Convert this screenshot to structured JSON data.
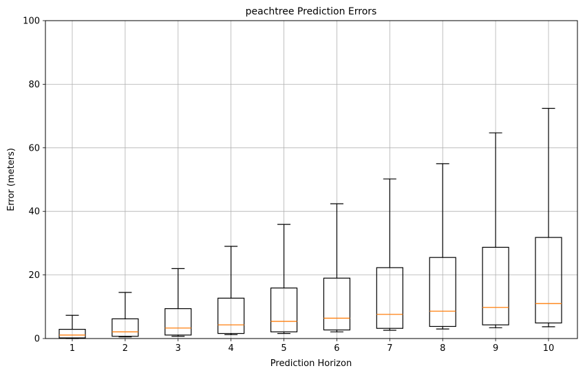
{
  "chart_data": {
    "type": "boxplot",
    "title": "peachtree Prediction Errors",
    "xlabel": "Prediction Horizon",
    "ylabel": "Error (meters)",
    "ylim": [
      0,
      100
    ],
    "yticks": [
      0,
      20,
      40,
      60,
      80,
      100
    ],
    "categories": [
      "1",
      "2",
      "3",
      "4",
      "5",
      "6",
      "7",
      "8",
      "9",
      "10"
    ],
    "boxes": [
      {
        "whisker_low": 0.0,
        "q1": 0.2,
        "median": 1.1,
        "q3": 2.9,
        "whisker_high": 7.3
      },
      {
        "whisker_low": 0.5,
        "q1": 0.7,
        "median": 2.1,
        "q3": 6.2,
        "whisker_high": 14.5
      },
      {
        "whisker_low": 0.7,
        "q1": 1.1,
        "median": 3.3,
        "q3": 9.4,
        "whisker_high": 22.0
      },
      {
        "whisker_low": 1.2,
        "q1": 1.6,
        "median": 4.3,
        "q3": 12.7,
        "whisker_high": 29.0
      },
      {
        "whisker_low": 1.6,
        "q1": 2.1,
        "median": 5.4,
        "q3": 15.9,
        "whisker_high": 35.9
      },
      {
        "whisker_low": 2.1,
        "q1": 2.7,
        "median": 6.4,
        "q3": 19.0,
        "whisker_high": 42.4
      },
      {
        "whisker_low": 2.6,
        "q1": 3.2,
        "median": 7.6,
        "q3": 22.3,
        "whisker_high": 50.2
      },
      {
        "whisker_low": 3.0,
        "q1": 3.8,
        "median": 8.6,
        "q3": 25.5,
        "whisker_high": 55.0
      },
      {
        "whisker_low": 3.4,
        "q1": 4.3,
        "median": 9.8,
        "q3": 28.7,
        "whisker_high": 64.7
      },
      {
        "whisker_low": 3.7,
        "q1": 4.9,
        "median": 11.0,
        "q3": 31.8,
        "whisker_high": 72.4
      }
    ],
    "grid": true,
    "colors": {
      "box": "#000000",
      "median": "#ff7f0e",
      "grid": "#b0b0b0"
    }
  }
}
